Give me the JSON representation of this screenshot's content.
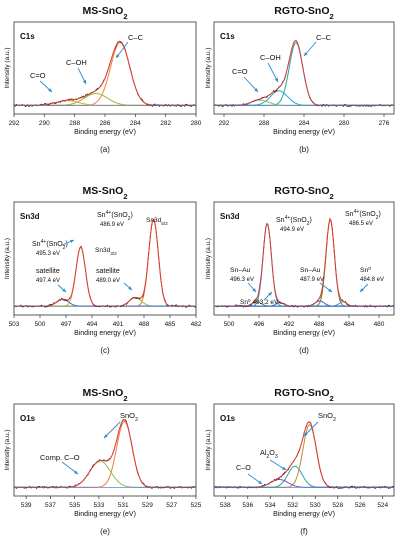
{
  "figure": {
    "column_titles": [
      {
        "main": "MS-SnO",
        "sub": "2"
      },
      {
        "main": "RGTO-SnO",
        "sub": "2"
      },
      {
        "main": "MS-SnO",
        "sub": "2"
      },
      {
        "main": "RGTO-SnO",
        "sub": "2"
      },
      {
        "main": "MS-SnO",
        "sub": "2"
      },
      {
        "main": "RGTO-SnO",
        "sub": "2"
      }
    ]
  },
  "chart_data": [
    {
      "type": "line",
      "title": "MS-SnO2",
      "panel_label": "(a)",
      "region_label": "C1s",
      "xlabel": "Binding energy (eV)",
      "ylabel": "Intensity (a.u.)",
      "xlim": [
        292,
        280
      ],
      "xticks": [
        292,
        290,
        288,
        286,
        284,
        282,
        280
      ],
      "colors": {
        "raw": "#000000",
        "envelope": "#e0413a",
        "c_c": "#e8873a",
        "c_oh": "#a6b02f",
        "c_o": "#e2b020"
      },
      "series": [
        {
          "name": "C–C",
          "peak_center_ev": 285.0,
          "fwhm_ev": 1.5,
          "relative_height": 0.95
        },
        {
          "name": "C–OH",
          "peak_center_ev": 286.6,
          "fwhm_ev": 1.8,
          "relative_height": 0.18
        },
        {
          "name": "C=O",
          "peak_center_ev": 288.5,
          "fwhm_ev": 1.8,
          "relative_height": 0.07
        }
      ],
      "annotations": [
        {
          "text": "C–C",
          "points_to_ev": 285.0
        },
        {
          "text": "C–OH",
          "points_to_ev": 286.6
        },
        {
          "text": "C=O",
          "points_to_ev": 288.5
        }
      ]
    },
    {
      "type": "line",
      "title": "RGTO-SnO2",
      "panel_label": "(b)",
      "region_label": "C1s",
      "xlabel": "Binding energy (eV)",
      "ylabel": "Intensity (a.u.)",
      "xlim": [
        293,
        275
      ],
      "xticks": [
        292,
        288,
        284,
        280,
        276
      ],
      "colors": {
        "raw": "#000000",
        "envelope": "#e0413a",
        "c_c": "#2aa7a0",
        "c_oh": "#2ea0d8",
        "c_o": "#8cc04a"
      },
      "series": [
        {
          "name": "C–C",
          "peak_center_ev": 284.8,
          "fwhm_ev": 1.6,
          "relative_height": 0.95
        },
        {
          "name": "C–OH",
          "peak_center_ev": 286.5,
          "fwhm_ev": 2.0,
          "relative_height": 0.22
        },
        {
          "name": "C=O",
          "peak_center_ev": 288.4,
          "fwhm_ev": 2.0,
          "relative_height": 0.08
        }
      ],
      "annotations": [
        {
          "text": "C–C",
          "points_to_ev": 284.8
        },
        {
          "text": "C–OH",
          "points_to_ev": 286.5
        },
        {
          "text": "C=O",
          "points_to_ev": 288.4
        }
      ]
    },
    {
      "type": "line",
      "title": "MS-SnO2",
      "panel_label": "(c)",
      "region_label": "Sn3d",
      "xlabel": "Binding energy (eV)",
      "ylabel": "Intensity (a.u.)",
      "xlim": [
        503,
        482
      ],
      "xticks": [
        503,
        500,
        497,
        494,
        491,
        488,
        485,
        482
      ],
      "colors": {
        "raw": "#000000",
        "envelope": "#e0413a",
        "sn_main": "#f07a3a",
        "sn_main_2": "#e8b030",
        "satellite_1": "#8cc04a",
        "satellite_2": "#3f6bd0"
      },
      "series": [
        {
          "name": "Sn3d5/2",
          "peak_center_ev": 486.9,
          "fwhm_ev": 1.3,
          "relative_height": 1.0
        },
        {
          "name": "Sn3d3/2",
          "peak_center_ev": 495.3,
          "fwhm_ev": 1.3,
          "relative_height": 0.68
        },
        {
          "name": "satellite",
          "peak_center_ev": 489.0,
          "fwhm_ev": 1.6,
          "relative_height": 0.1
        },
        {
          "name": "satellite",
          "peak_center_ev": 497.4,
          "fwhm_ev": 1.6,
          "relative_height": 0.08
        }
      ],
      "annotations": [
        {
          "text": "Sn4+(SnO2)",
          "value": "486.9 eV"
        },
        {
          "text": "Sn3d5/2"
        },
        {
          "text": "Sn4+(SnO2)",
          "value": "495.3 eV"
        },
        {
          "text": "Sn3d3/2"
        },
        {
          "text": "satellite",
          "value": "497.4 eV"
        },
        {
          "text": "satellite",
          "value": "489.0 eV"
        }
      ]
    },
    {
      "type": "line",
      "title": "RGTO-SnO2",
      "panel_label": "(d)",
      "region_label": "Sn3d",
      "xlabel": "Binding energy (eV)",
      "ylabel": "Intensity (a.u.)",
      "xlim": [
        502,
        478
      ],
      "xticks": [
        500,
        496,
        492,
        488,
        484,
        480
      ],
      "colors": {
        "raw": "#000000",
        "envelope": "#e0413a",
        "sn_main": "#8a7a1a",
        "sn_au": "#2ea0d8",
        "sn0": "#3f6bd0"
      },
      "series": [
        {
          "name": "Sn4+(SnO2)",
          "peak_center_ev": 486.5,
          "fwhm_ev": 1.3,
          "relative_height": 1.0
        },
        {
          "name": "Sn4+(SnO2)",
          "peak_center_ev": 494.9,
          "fwhm_ev": 1.3,
          "relative_height": 0.95
        },
        {
          "name": "Sn–Au",
          "peak_center_ev": 487.9,
          "fwhm_ev": 1.4,
          "relative_height": 0.06
        },
        {
          "name": "Sn–Au",
          "peak_center_ev": 496.3,
          "fwhm_ev": 1.4,
          "relative_height": 0.05
        },
        {
          "name": "Sn0",
          "peak_center_ev": 484.8,
          "fwhm_ev": 1.2,
          "relative_height": 0.05
        },
        {
          "name": "Sn0",
          "peak_center_ev": 493.2,
          "fwhm_ev": 1.2,
          "relative_height": 0.04
        }
      ],
      "annotations": [
        {
          "text": "Sn4+(SnO2)",
          "value": "494.9 eV"
        },
        {
          "text": "Sn4+(SnO2)",
          "value": "486.5 eV"
        },
        {
          "text": "Sn–Au",
          "value": "496.3 eV"
        },
        {
          "text": "Sn–Au",
          "value": "487.9 eV"
        },
        {
          "text": "Sn0",
          "value": "484.8 eV"
        },
        {
          "text": "Sn0",
          "value": "493.2 eV"
        }
      ]
    },
    {
      "type": "line",
      "title": "MS-SnO2",
      "panel_label": "(e)",
      "region_label": "O1s",
      "xlabel": "Binding energy (eV)",
      "ylabel": "Intensity (a.u.)",
      "xlim": [
        540,
        525
      ],
      "xticks": [
        539,
        537,
        535,
        533,
        531,
        529,
        527,
        525
      ],
      "colors": {
        "raw": "#000000",
        "envelope": "#e0413a",
        "sno2": "#f07a3a",
        "comp_co": "#8cc04a"
      },
      "series": [
        {
          "name": "SnO2",
          "peak_center_ev": 530.9,
          "fwhm_ev": 1.5,
          "relative_height": 1.0
        },
        {
          "name": "Comp. C–O",
          "peak_center_ev": 532.9,
          "fwhm_ev": 2.0,
          "relative_height": 0.4
        }
      ],
      "annotations": [
        {
          "text": "SnO2",
          "points_to_ev": 530.9
        },
        {
          "text": "Comp. C–O",
          "points_to_ev": 532.9
        }
      ]
    },
    {
      "type": "line",
      "title": "RGTO-SnO2",
      "panel_label": "(f)",
      "region_label": "O1s",
      "xlabel": "Binding energy (eV)",
      "ylabel": "Intensity (a.u.)",
      "xlim": [
        539,
        523
      ],
      "xticks": [
        538,
        536,
        534,
        532,
        530,
        528,
        526,
        524
      ],
      "colors": {
        "raw": "#000000",
        "envelope": "#e0413a",
        "sno2": "#c58a2a",
        "al2o3": "#2aa7a0",
        "c_o": "#7a5ab8",
        "base": "#3f6bd0"
      },
      "series": [
        {
          "name": "SnO2",
          "peak_center_ev": 530.5,
          "fwhm_ev": 1.4,
          "relative_height": 0.95
        },
        {
          "name": "Al2O3",
          "peak_center_ev": 531.8,
          "fwhm_ev": 1.5,
          "relative_height": 0.32
        },
        {
          "name": "C–O",
          "peak_center_ev": 533.2,
          "fwhm_ev": 1.8,
          "relative_height": 0.12
        }
      ],
      "annotations": [
        {
          "text": "SnO2",
          "points_to_ev": 530.5
        },
        {
          "text": "Al2O3",
          "points_to_ev": 531.8
        },
        {
          "text": "C–O",
          "points_to_ev": 533.2
        }
      ]
    }
  ]
}
